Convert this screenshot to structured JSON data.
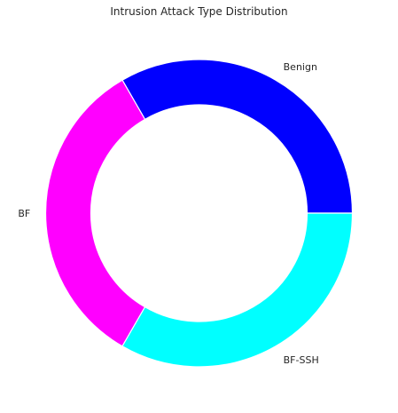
{
  "chart_data": {
    "type": "pie",
    "style": "donut",
    "title": "Intrusion Attack Type Distribution",
    "categories": [
      "Benign",
      "BF",
      "BF-SSH"
    ],
    "values": [
      33.33,
      33.33,
      33.33
    ],
    "colors": [
      "#0000ff",
      "#ff00ff",
      "#00ffff"
    ],
    "start_angle": 0,
    "direction": "counterclockwise",
    "legend": "none"
  }
}
